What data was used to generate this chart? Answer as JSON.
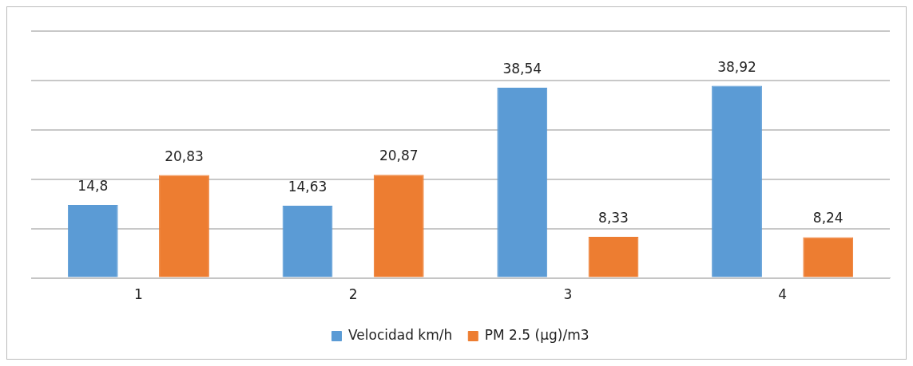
{
  "chart_data": {
    "type": "bar",
    "categories": [
      "1",
      "2",
      "3",
      "4"
    ],
    "series": [
      {
        "name": "Velocidad km/h",
        "color": "#5b9bd5",
        "values": [
          14.8,
          14.63,
          38.54,
          38.92
        ],
        "value_labels": [
          "14,8",
          "14,63",
          "38,54",
          "38,92"
        ]
      },
      {
        "name": "PM 2.5 (µg)/m3",
        "color": "#ed7d31",
        "values": [
          20.83,
          20.87,
          8.33,
          8.24
        ],
        "value_labels": [
          "20,83",
          "20,87",
          "8,33",
          "8,24"
        ]
      }
    ],
    "ylim": [
      0,
      50
    ],
    "tick_labels": "x",
    "grid": "y",
    "legend": "bottom"
  }
}
